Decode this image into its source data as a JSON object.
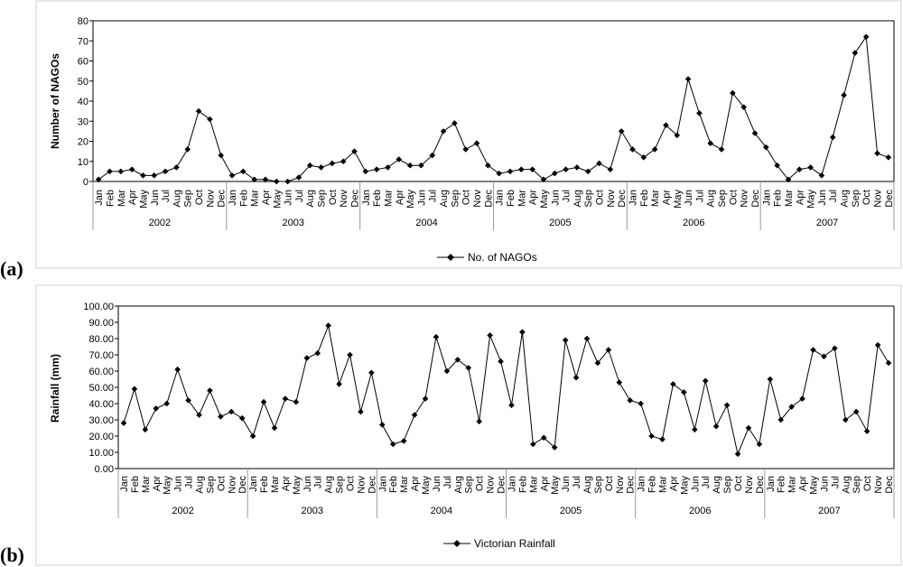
{
  "chart_data": [
    {
      "panel": "(a)",
      "type": "line",
      "ylabel": "Number of NAGOs",
      "ylim": [
        0,
        80
      ],
      "yticks": [
        0,
        10,
        20,
        30,
        40,
        50,
        60,
        70,
        80
      ],
      "ytick_labels": [
        "0",
        "10",
        "20",
        "30",
        "40",
        "50",
        "60",
        "70",
        "80"
      ],
      "months": [
        "Jan",
        "Feb",
        "Mar",
        "Apr",
        "May",
        "Jun",
        "Jul",
        "Aug",
        "Sep",
        "Oct",
        "Nov",
        "Dec"
      ],
      "years": [
        "2002",
        "2003",
        "2004",
        "2005",
        "2006",
        "2007"
      ],
      "legend": "top-bottom",
      "series": [
        {
          "name": "No. of NAGOs",
          "values": [
            1,
            5,
            5,
            6,
            3,
            3,
            5,
            7,
            16,
            35,
            31,
            13,
            3,
            5,
            1,
            1,
            0,
            0,
            2,
            8,
            7,
            9,
            10,
            15,
            5,
            6,
            7,
            11,
            8,
            8,
            13,
            25,
            29,
            16,
            19,
            8,
            4,
            5,
            6,
            6,
            1,
            4,
            6,
            7,
            5,
            9,
            6,
            25,
            16,
            12,
            16,
            28,
            23,
            51,
            34,
            19,
            16,
            44,
            37,
            24,
            17,
            8,
            1,
            6,
            7,
            3,
            22,
            43,
            64,
            72,
            14,
            12
          ]
        }
      ]
    },
    {
      "panel": "(b)",
      "type": "line",
      "ylabel": "Rainfall (mm)",
      "ylim": [
        0,
        100
      ],
      "yticks": [
        0,
        10,
        20,
        30,
        40,
        50,
        60,
        70,
        80,
        90,
        100
      ],
      "ytick_labels": [
        "0.00",
        "10.00",
        "20.00",
        "30.00",
        "40.00",
        "50.00",
        "60.00",
        "70.00",
        "80.00",
        "90.00",
        "100.00"
      ],
      "months": [
        "Jan",
        "Feb",
        "Mar",
        "Apr",
        "May",
        "Jun",
        "Jul",
        "Aug",
        "Sep",
        "Oct",
        "Nov",
        "Dec"
      ],
      "years": [
        "2002",
        "2003",
        "2004",
        "2005",
        "2006",
        "2007"
      ],
      "series": [
        {
          "name": "Victorian Rainfall",
          "values": [
            28,
            49,
            24,
            37,
            40,
            61,
            42,
            33,
            48,
            32,
            35,
            31,
            20,
            41,
            25,
            43,
            41,
            68,
            71,
            88,
            52,
            70,
            35,
            59,
            27,
            15,
            17,
            33,
            43,
            81,
            60,
            67,
            62,
            29,
            82,
            66,
            39,
            84,
            15,
            19,
            13,
            79,
            56,
            80,
            65,
            73,
            53,
            42,
            40,
            20,
            18,
            52,
            47,
            24,
            54,
            26,
            39,
            9,
            25,
            15,
            55,
            30,
            38,
            43,
            73,
            69,
            74,
            30,
            35,
            23,
            76,
            65
          ]
        }
      ]
    }
  ]
}
